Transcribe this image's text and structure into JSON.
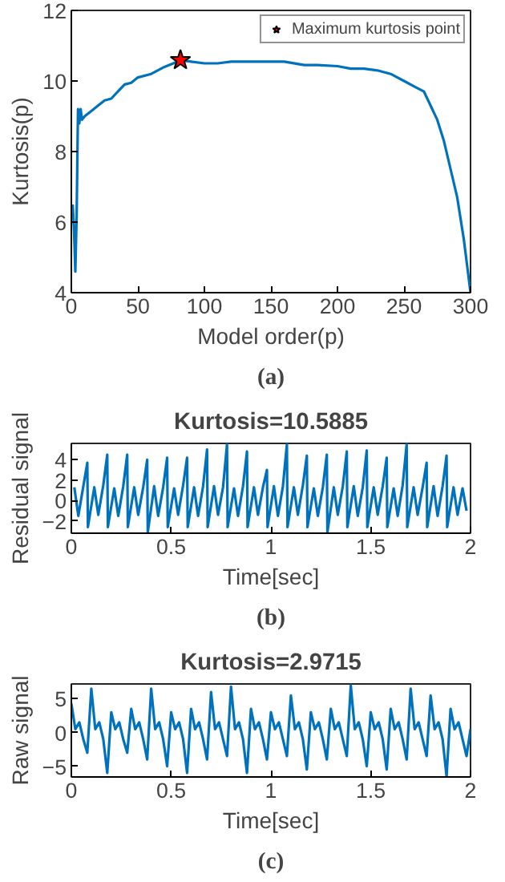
{
  "chart_data": [
    {
      "type": "line",
      "xlabel": "Model order(p)",
      "ylabel": "Kurtosis(p)",
      "annotations": [
        "(a)"
      ],
      "xlim": [
        0,
        300
      ],
      "ylim": [
        4,
        12
      ],
      "xticks": [
        0,
        50,
        100,
        150,
        200,
        250,
        300
      ],
      "yticks": [
        4,
        6,
        8,
        10,
        12
      ],
      "grid": false,
      "legend": "top right",
      "series": [
        {
          "color": "#0072bd",
          "x": [
            1,
            2,
            3,
            4,
            5,
            6,
            7,
            8,
            10,
            15,
            20,
            25,
            30,
            35,
            40,
            45,
            50,
            60,
            70,
            80,
            82,
            90,
            100,
            110,
            120,
            140,
            160,
            175,
            185,
            200,
            210,
            220,
            230,
            240,
            250,
            260,
            265,
            270,
            275,
            280,
            285,
            290,
            295,
            300
          ],
          "values": [
            6.5,
            5.8,
            4.6,
            6.2,
            9.2,
            8.8,
            9.2,
            8.9,
            9.0,
            9.15,
            9.3,
            9.45,
            9.5,
            9.7,
            9.9,
            9.95,
            10.1,
            10.2,
            10.4,
            10.55,
            10.59,
            10.55,
            10.5,
            10.5,
            10.55,
            10.55,
            10.55,
            10.45,
            10.45,
            10.42,
            10.35,
            10.35,
            10.3,
            10.2,
            10.0,
            9.8,
            9.7,
            9.3,
            8.9,
            8.3,
            7.5,
            6.7,
            5.5,
            4.0
          ]
        },
        {
          "type": "scatter",
          "name": "Maximum kurtosis point",
          "color": "#ff0000",
          "marker": "star",
          "x": [
            82
          ],
          "values": [
            10.59
          ]
        }
      ]
    },
    {
      "type": "line",
      "title": "Kurtosis=10.5885",
      "xlabel": "Time[sec]",
      "ylabel": "Residual signal",
      "annotations": [
        "(b)"
      ],
      "xlim": [
        0,
        2
      ],
      "ylim": [
        -3.2,
        5.6
      ],
      "xticks": [
        0,
        0.5,
        1,
        1.5,
        2
      ],
      "yticks": [
        -2,
        0,
        2,
        4
      ],
      "grid": false,
      "series": [
        {
          "color": "#0072bd",
          "x": [
            0.015,
            0.035,
            0.06,
            0.08,
            0.083,
            0.115,
            0.135,
            0.16,
            0.18,
            0.183,
            0.215,
            0.235,
            0.26,
            0.28,
            0.283,
            0.315,
            0.335,
            0.36,
            0.38,
            0.383,
            0.415,
            0.435,
            0.46,
            0.48,
            0.483,
            0.515,
            0.535,
            0.56,
            0.58,
            0.583,
            0.615,
            0.635,
            0.66,
            0.68,
            0.683,
            0.715,
            0.735,
            0.76,
            0.78,
            0.783,
            0.815,
            0.835,
            0.86,
            0.88,
            0.883,
            0.915,
            0.935,
            0.96,
            0.98,
            0.983,
            1.015,
            1.035,
            1.06,
            1.08,
            1.083,
            1.115,
            1.135,
            1.16,
            1.18,
            1.183,
            1.215,
            1.235,
            1.26,
            1.28,
            1.283,
            1.315,
            1.335,
            1.36,
            1.38,
            1.383,
            1.415,
            1.435,
            1.46,
            1.48,
            1.483,
            1.515,
            1.535,
            1.56,
            1.58,
            1.583,
            1.615,
            1.635,
            1.66,
            1.68,
            1.683,
            1.715,
            1.735,
            1.76,
            1.78,
            1.783,
            1.815,
            1.835,
            1.86,
            1.88,
            1.883,
            1.915,
            1.935,
            1.96,
            1.98
          ],
          "values": [
            1.3,
            -1.5,
            1.4,
            3.7,
            -2.6,
            1.3,
            -1.4,
            1.5,
            4.5,
            -2.6,
            1.2,
            -1.5,
            1.4,
            4.5,
            -2.6,
            1.3,
            -1.4,
            1.3,
            4.0,
            -3.1,
            1.4,
            -1.5,
            1.3,
            4.2,
            -2.6,
            1.2,
            -1.4,
            1.5,
            4.2,
            -2.6,
            1.3,
            -1.5,
            1.4,
            5.0,
            -2.6,
            1.4,
            -1.4,
            1.3,
            5.5,
            -2.6,
            1.2,
            -1.5,
            1.4,
            4.8,
            -2.6,
            1.3,
            -1.4,
            1.3,
            3.0,
            -2.6,
            1.4,
            -1.5,
            1.4,
            5.5,
            -2.6,
            1.3,
            -1.4,
            1.5,
            4.4,
            -2.6,
            1.2,
            -1.5,
            1.3,
            4.5,
            -3.1,
            1.3,
            -1.4,
            1.4,
            4.8,
            -2.6,
            1.4,
            -1.5,
            1.3,
            4.9,
            -2.6,
            1.3,
            -1.4,
            1.4,
            4.2,
            -2.6,
            1.2,
            -1.5,
            1.5,
            5.5,
            -2.6,
            1.3,
            -1.4,
            1.3,
            3.7,
            -2.6,
            1.4,
            -1.5,
            1.4,
            4.4,
            -2.6,
            1.3,
            -1.4,
            1.2,
            -1.0
          ]
        }
      ]
    },
    {
      "type": "line",
      "title": "Kurtosis=2.9715",
      "xlabel": "Time[sec]",
      "ylabel": "Raw signal",
      "annotations": [
        "(c)"
      ],
      "xlim": [
        0,
        2
      ],
      "ylim": [
        -6.6,
        7.2
      ],
      "xticks": [
        0,
        0.5,
        1,
        1.5,
        2
      ],
      "yticks": [
        -5,
        0,
        5
      ],
      "grid": false,
      "series": [
        {
          "color": "#0072bd",
          "x": [
            0,
            0.02,
            0.04,
            0.06,
            0.08,
            0.1,
            0.12,
            0.14,
            0.16,
            0.18,
            0.2,
            0.22,
            0.24,
            0.26,
            0.28,
            0.3,
            0.32,
            0.34,
            0.36,
            0.38,
            0.4,
            0.42,
            0.44,
            0.46,
            0.48,
            0.5,
            0.52,
            0.54,
            0.56,
            0.58,
            0.6,
            0.62,
            0.64,
            0.66,
            0.68,
            0.7,
            0.72,
            0.74,
            0.76,
            0.78,
            0.8,
            0.82,
            0.84,
            0.86,
            0.88,
            0.9,
            0.92,
            0.94,
            0.96,
            0.98,
            1.0,
            1.02,
            1.04,
            1.06,
            1.08,
            1.1,
            1.12,
            1.14,
            1.16,
            1.18,
            1.2,
            1.22,
            1.24,
            1.26,
            1.28,
            1.3,
            1.32,
            1.34,
            1.36,
            1.38,
            1.4,
            1.42,
            1.44,
            1.46,
            1.48,
            1.5,
            1.52,
            1.54,
            1.56,
            1.58,
            1.6,
            1.62,
            1.64,
            1.66,
            1.68,
            1.7,
            1.72,
            1.74,
            1.76,
            1.78,
            1.8,
            1.82,
            1.84,
            1.86,
            1.88,
            1.9,
            1.92,
            1.94,
            1.96,
            1.98,
            2.0
          ],
          "values": [
            4.3,
            0.5,
            1.5,
            -1,
            -3,
            6.5,
            0.5,
            1.5,
            -1,
            -6,
            3.0,
            0.5,
            1.5,
            -1,
            -3,
            3.5,
            0.5,
            1.5,
            -1,
            -4,
            6.5,
            0.5,
            1.5,
            -1,
            -5,
            3.0,
            0.5,
            1.5,
            -1,
            -6,
            3.5,
            0.5,
            1.5,
            -1,
            -4,
            6.0,
            0.5,
            1.5,
            -1,
            -3.5,
            6.8,
            0.5,
            1.5,
            -1,
            -6,
            3.5,
            0.5,
            1.5,
            -1,
            -4,
            3.0,
            0.5,
            1.5,
            -1,
            -3.5,
            5.5,
            0.5,
            1.5,
            -1,
            -5.5,
            3.0,
            0.5,
            1.5,
            -1,
            -4,
            3.5,
            0.5,
            1.5,
            -1,
            -3.5,
            7.0,
            0.5,
            1.5,
            -1,
            -5,
            3.0,
            0.5,
            1.5,
            -1,
            -5.5,
            3.5,
            0.5,
            1.5,
            -1,
            -4,
            6.5,
            0.5,
            1.5,
            -1,
            -3.5,
            5.5,
            0.5,
            1.5,
            -1,
            -6.5,
            3.5,
            0.5,
            1.5,
            -1,
            -3.5,
            0.5
          ]
        }
      ]
    }
  ]
}
